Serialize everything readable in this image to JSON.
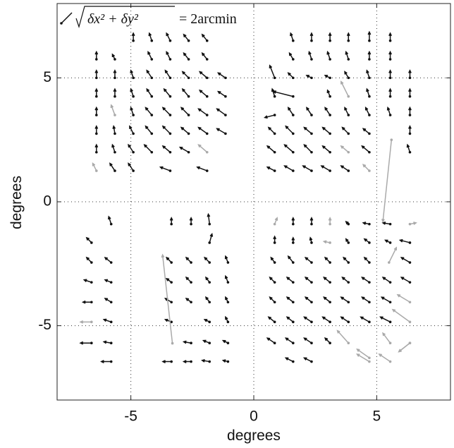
{
  "chart_data": {
    "type": "quiver",
    "legend_label": {
      "radicand": "δx² + δy²",
      "rhs": "= 2arcmin"
    },
    "xlabel": "degrees",
    "ylabel": "degrees",
    "xlim": [
      -8,
      8
    ],
    "ylim": [
      -8,
      8
    ],
    "xticks": [
      -5,
      0,
      5
    ],
    "yticks": [
      -5,
      0,
      5
    ],
    "grid": true,
    "series": [
      {
        "color": "#111111",
        "x": [
          -4.9,
          -4.15,
          -3.4,
          -2.65,
          -1.9,
          -6.4,
          -5.65,
          -4.15,
          -3.4,
          -2.65,
          -1.9,
          -6.4,
          -5.65,
          -4.9,
          -4.15,
          -3.4,
          -2.65,
          -1.9,
          -1.15,
          -6.4,
          -5.65,
          -4.9,
          -4.15,
          -3.4,
          -2.65,
          -1.9,
          -1.15,
          -6.4,
          -4.9,
          -4.15,
          -3.4,
          -2.65,
          -1.9,
          -1.15,
          -6.4,
          -5.65,
          -4.9,
          -4.15,
          -3.4,
          -2.65,
          -1.9,
          -1.15,
          -6.4,
          -5.65,
          -4.9,
          -4.15,
          -3.4,
          -2.65,
          -5.65,
          -4.9,
          -3.4,
          -1.9,
          1.6,
          2.35,
          3.1,
          3.85,
          4.7,
          5.55,
          1.6,
          2.35,
          3.1,
          3.85,
          4.7,
          5.55,
          0.85,
          1.6,
          2.35,
          3.1,
          3.85,
          4.7,
          5.55,
          6.35,
          0.85,
          1.6,
          3.1,
          4.7,
          5.55,
          6.35,
          0.85,
          1.6,
          2.35,
          3.1,
          3.85,
          4.7,
          5.55,
          6.35,
          0.85,
          1.6,
          2.35,
          3.1,
          3.85,
          4.7,
          6.35,
          0.85,
          1.6,
          2.35,
          3.1,
          4.7,
          6.35,
          0.85,
          1.6,
          2.35,
          3.1,
          3.85,
          -5.8,
          -3.35,
          -2.55,
          -1.8,
          -6.6,
          -1.8,
          -6.6,
          -5.8,
          -3.35,
          -2.55,
          -1.8,
          -1.05,
          -6.6,
          -5.8,
          -3.35,
          -2.55,
          -1.8,
          -1.05,
          -6.6,
          -5.8,
          -3.35,
          -2.55,
          -1.8,
          -1.05,
          -5.8,
          -3.35,
          -1.8,
          -1.05,
          -6.6,
          -5.8,
          -2.55,
          -1.8,
          -1.05,
          -5.8,
          -3.35,
          -2.55,
          -1.8,
          -1.05,
          1.6,
          2.35,
          3.85,
          4.7,
          5.55,
          0.85,
          1.6,
          2.35,
          3.85,
          4.7,
          5.55,
          6.35,
          0.85,
          1.6,
          2.35,
          3.1,
          3.85,
          4.7,
          6.35,
          0.85,
          1.6,
          2.35,
          3.1,
          3.85,
          4.7,
          5.55,
          6.35,
          0.85,
          1.6,
          2.35,
          3.1,
          3.85,
          4.7,
          5.55,
          0.85,
          1.6,
          2.35,
          3.1,
          3.85,
          4.7,
          5.55,
          0.85,
          1.6,
          2.35,
          3.1,
          1.6,
          2.35
        ],
        "y": [
          6.5,
          6.5,
          6.5,
          6.5,
          6.5,
          5.75,
          5.75,
          5.75,
          5.75,
          5.75,
          5.75,
          5,
          5,
          5,
          5,
          5,
          5,
          5,
          5,
          4.25,
          4.25,
          4.25,
          4.25,
          4.25,
          4.25,
          4.25,
          4.25,
          3.5,
          3.5,
          3.5,
          3.5,
          3.5,
          3.5,
          3.5,
          2.75,
          2.75,
          2.75,
          2.75,
          2.75,
          2.75,
          2.75,
          2.75,
          2,
          2,
          2,
          2,
          2,
          2,
          1.25,
          1.25,
          1.25,
          1.25,
          6.5,
          6.5,
          6.5,
          6.5,
          6.5,
          6.5,
          5.75,
          5.75,
          5.75,
          5.75,
          5.75,
          5.75,
          5,
          5,
          5,
          5,
          5,
          5,
          5,
          5,
          4.25,
          4.25,
          4.25,
          4.25,
          4.25,
          4.25,
          3.5,
          3.5,
          3.5,
          3.5,
          3.5,
          3.5,
          3.5,
          3.5,
          2.75,
          2.75,
          2.75,
          2.75,
          2.75,
          2.75,
          2.75,
          2,
          2,
          2,
          2,
          2,
          2,
          1.25,
          1.25,
          1.25,
          1.25,
          1.25,
          -0.9,
          -0.9,
          -0.9,
          -0.9,
          -1.65,
          -1.65,
          -2.45,
          -2.45,
          -2.45,
          -2.45,
          -2.45,
          -2.45,
          -3.25,
          -3.25,
          -3.25,
          -3.25,
          -3.25,
          -3.25,
          -4.05,
          -4.05,
          -4.05,
          -4.05,
          -4.05,
          -4.05,
          -4.85,
          -4.85,
          -4.85,
          -4.85,
          -5.7,
          -5.7,
          -5.7,
          -5.7,
          -5.7,
          -6.45,
          -6.45,
          -6.45,
          -6.45,
          -6.45,
          -0.9,
          -0.9,
          -0.9,
          -0.9,
          -0.9,
          -1.65,
          -1.65,
          -1.65,
          -1.65,
          -1.65,
          -1.65,
          -1.65,
          -2.45,
          -2.45,
          -2.45,
          -2.45,
          -2.45,
          -2.45,
          -2.45,
          -3.25,
          -3.25,
          -3.25,
          -3.25,
          -3.25,
          -3.25,
          -3.25,
          -3.25,
          -4.05,
          -4.05,
          -4.05,
          -4.05,
          -4.05,
          -4.05,
          -4.05,
          -4.85,
          -4.85,
          -4.85,
          -4.85,
          -4.85,
          -4.85,
          -4.85,
          -5.7,
          -5.7,
          -5.7,
          -5.7,
          -6.45,
          -6.45
        ],
        "u": [
          0,
          -0.1,
          -0.15,
          -0.2,
          -0.2,
          0,
          -0.1,
          -0.15,
          -0.15,
          -0.2,
          -0.2,
          0,
          0,
          -0.1,
          -0.2,
          -0.2,
          -0.25,
          -0.3,
          -0.3,
          0,
          0,
          -0.1,
          -0.2,
          -0.25,
          -0.25,
          -0.3,
          -0.3,
          0,
          -0.1,
          -0.25,
          -0.3,
          -0.3,
          -0.35,
          -0.35,
          0,
          -0.05,
          -0.15,
          -0.25,
          -0.3,
          -0.3,
          -0.35,
          -0.35,
          0,
          -0.1,
          -0.2,
          -0.3,
          -0.3,
          -0.35,
          -0.2,
          -0.2,
          -0.4,
          -0.4,
          -0.1,
          0,
          0,
          0,
          0,
          0,
          -0.15,
          -0.1,
          -0.1,
          -0.1,
          0,
          0,
          -0.2,
          -0.2,
          -0.2,
          -0.2,
          -0.15,
          -0.1,
          0,
          0,
          -0.1,
          -0.8,
          -0.1,
          -0.1,
          0,
          0,
          -0.4,
          -0.2,
          -0.2,
          -0.2,
          -0.15,
          -0.15,
          -0.1,
          0,
          -0.25,
          -0.3,
          -0.3,
          -0.3,
          -0.25,
          -0.25,
          0,
          -0.3,
          -0.35,
          -0.3,
          -0.3,
          -0.3,
          -0.1,
          -0.3,
          -0.35,
          -0.35,
          -0.35,
          -0.3,
          -0.1,
          0,
          0,
          -0.05,
          -0.2,
          0.1,
          -0.2,
          -0.25,
          -0.2,
          -0.2,
          -0.2,
          -0.1,
          -0.3,
          -0.25,
          -0.2,
          -0.2,
          -0.15,
          -0.1,
          -0.35,
          -0.25,
          -0.25,
          -0.2,
          -0.15,
          -0.1,
          -0.3,
          -0.25,
          -0.2,
          -0.1,
          -0.45,
          -0.3,
          -0.3,
          -0.25,
          -0.2,
          -0.4,
          -0.35,
          -0.3,
          -0.3,
          -0.2,
          0,
          0,
          -0.1,
          -0.25,
          -0.3,
          0,
          0,
          -0.05,
          -0.1,
          -0.2,
          -0.2,
          -0.4,
          -0.15,
          -0.2,
          -0.25,
          -0.2,
          -0.2,
          -0.2,
          -0.35,
          -0.2,
          -0.25,
          -0.25,
          -0.25,
          -0.25,
          -0.3,
          -0.3,
          -0.35,
          -0.2,
          -0.25,
          -0.25,
          -0.25,
          -0.3,
          -0.3,
          -0.35,
          -0.25,
          -0.25,
          -0.3,
          -0.3,
          -0.3,
          -0.35,
          -0.4,
          -0.3,
          -0.3,
          -0.3,
          -0.2,
          -0.3,
          -0.3
        ],
        "v": [
          0.3,
          0.3,
          0.3,
          0.25,
          0.25,
          0.3,
          0.2,
          0.3,
          0.3,
          0.25,
          0.25,
          0.3,
          0.3,
          0.3,
          0.3,
          0.3,
          0.25,
          0.25,
          0.2,
          0.3,
          0.3,
          0.3,
          0.3,
          0.3,
          0.3,
          0.25,
          0.2,
          0.3,
          0.3,
          0.3,
          0.3,
          0.3,
          0.25,
          0.25,
          0.3,
          0.3,
          0.3,
          0.3,
          0.3,
          0.25,
          0.25,
          0.2,
          0.3,
          0.3,
          0.3,
          0.3,
          0.25,
          0.2,
          0.3,
          0.3,
          0.15,
          0.15,
          0.3,
          0.3,
          0.3,
          0.3,
          0.35,
          0.3,
          0.25,
          0.3,
          0.3,
          0.3,
          0.3,
          0.3,
          0.5,
          0.2,
          0.1,
          0.1,
          0.25,
          0.3,
          0.3,
          0.3,
          0.3,
          0.2,
          0.25,
          0.3,
          0.3,
          0.3,
          -0.1,
          0.3,
          0.3,
          0.3,
          0.3,
          0.3,
          0.3,
          0.3,
          0.25,
          0.3,
          0.25,
          0.25,
          0.25,
          0.2,
          0.3,
          0.25,
          0.3,
          0.3,
          0.25,
          0.25,
          0.3,
          0.15,
          0.2,
          0.2,
          0.2,
          0.2,
          0.3,
          0.25,
          0.25,
          0.4,
          0.2,
          0.35,
          0.2,
          0.2,
          0.2,
          0.2,
          0.2,
          0.25,
          0.1,
          0.1,
          0.15,
          0.2,
          0.2,
          0.25,
          0,
          0.15,
          0.15,
          0.15,
          0.2,
          0.2,
          0.1,
          0.1,
          0.1,
          0.2,
          0,
          0.05,
          0.05,
          0.1,
          0.1,
          0,
          0,
          0,
          0.05,
          0.05,
          0.25,
          0.25,
          0.1,
          0.05,
          0.05,
          0.25,
          0.2,
          0.2,
          0.15,
          0.15,
          0.1,
          0.1,
          0.2,
          0.25,
          0.2,
          0.2,
          0.2,
          0.2,
          0.2,
          0.2,
          0.2,
          0.2,
          0.2,
          0.2,
          0.2,
          0.2,
          0.2,
          0.2,
          0.2,
          0.2,
          0.2,
          0.2,
          0.2,
          0.2,
          0.2,
          0.2,
          0.2,
          0.2,
          0.2,
          0.2,
          0.2,
          0.2,
          0.2,
          0.2,
          0.2,
          0.15,
          0.15
        ]
      },
      {
        "color": "#aaaaaa",
        "x": [
          -5.65,
          -6.4,
          -1.9,
          3.85,
          3.85,
          4.7,
          5.6,
          0.85,
          3.1,
          6.35,
          3.1,
          5.5,
          6.35,
          6.35,
          6.35,
          3.85,
          4.7,
          5.55,
          6.35,
          4.7,
          5.55,
          -6.6,
          -3.31
        ],
        "y": [
          3.5,
          1.25,
          2,
          4.25,
          2,
          1.25,
          2.5,
          -0.9,
          -0.9,
          -0.9,
          -1.65,
          -2.45,
          -4.05,
          -4.85,
          -5.7,
          -5.7,
          -6.3,
          -5.7,
          -5.7,
          -6.45,
          -6.45,
          -4.85,
          -5.71
        ],
        "u": [
          -0.15,
          -0.15,
          -0.35,
          -0.3,
          -0.3,
          -0.25,
          -0.35,
          0.1,
          0,
          0.25,
          -0.25,
          0.3,
          -0.5,
          -0.7,
          -0.45,
          -0.45,
          -0.5,
          -0.3,
          -0.45,
          -0.5,
          -0.45,
          -0.45,
          -0.4
        ],
        "v": [
          0.4,
          0.3,
          0.3,
          0.6,
          0.25,
          0.25,
          -3.3,
          0.25,
          0.25,
          0.05,
          0.05,
          0.6,
          0.3,
          0.5,
          -0.35,
          0.5,
          0.35,
          0.4,
          -0.35,
          0.3,
          0.3,
          0,
          3.57
        ]
      }
    ]
  }
}
